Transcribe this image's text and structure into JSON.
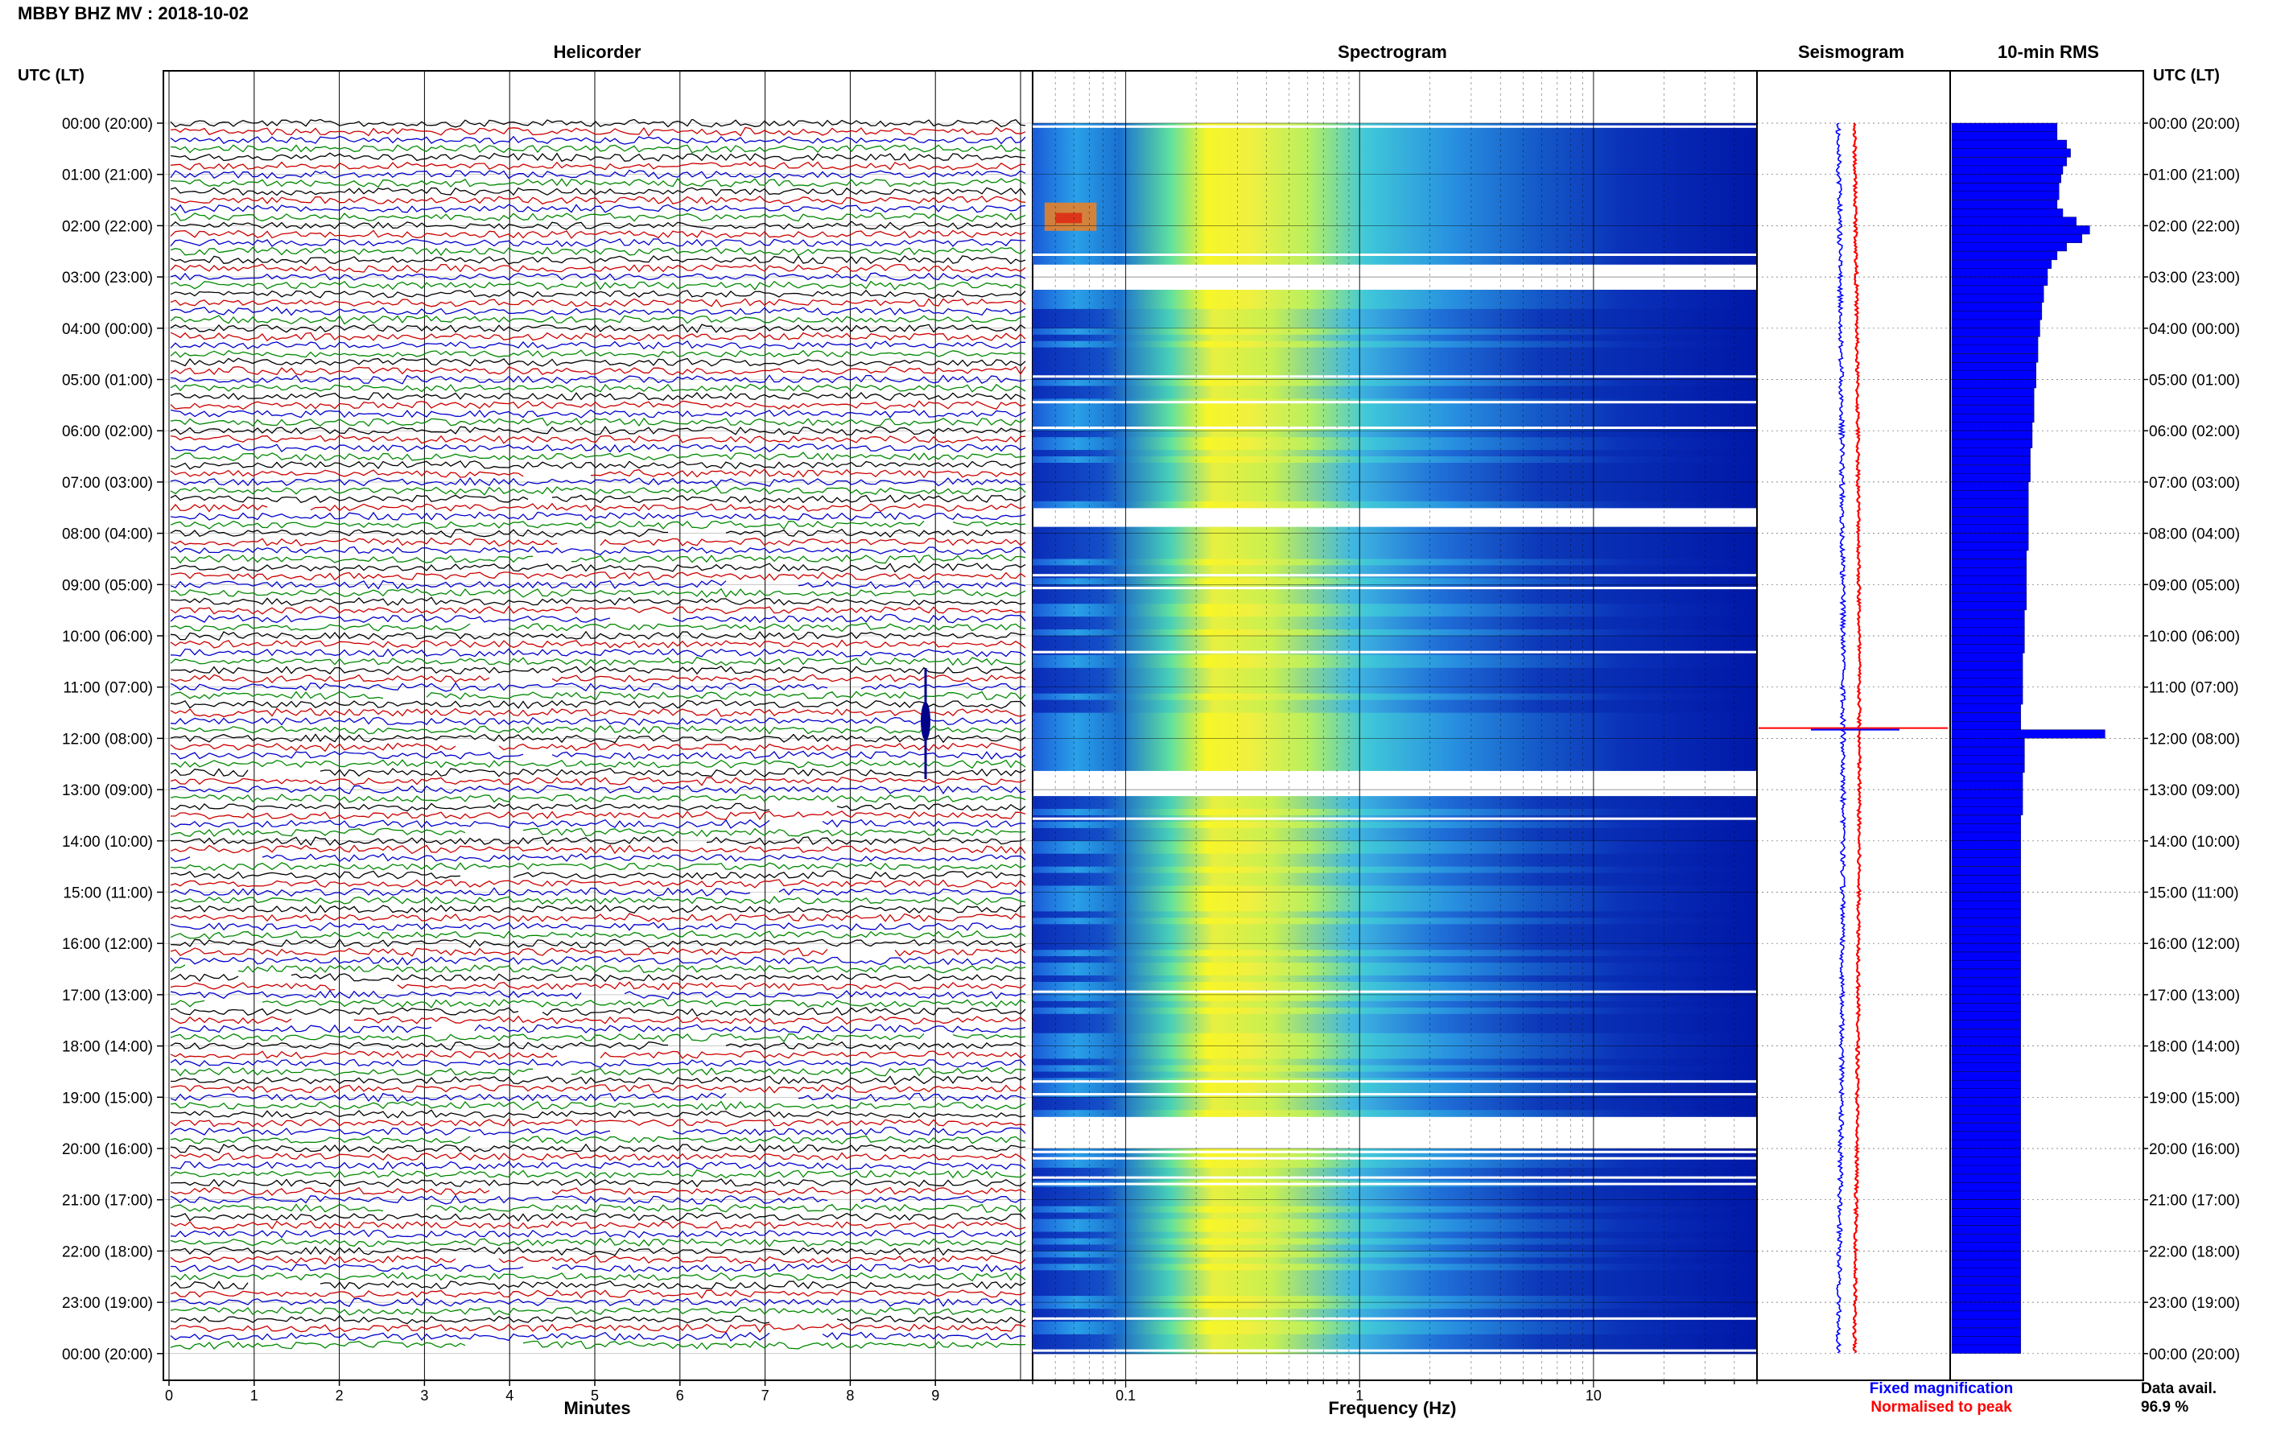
{
  "header": {
    "station_title": "MBBY BHZ MV : 2018-10-02",
    "utc_lt_left": "UTC (LT)",
    "utc_lt_right": "UTC (LT)"
  },
  "panels": {
    "helicorder": "Helicorder",
    "spectrogram": "Spectrogram",
    "seismogram": "Seismogram",
    "rms": "10-min RMS"
  },
  "footer": {
    "fixed_magnification": "Fixed magnification",
    "normalised_to_peak": "Normalised to peak",
    "data_avail_label": "Data avail.",
    "data_avail_value": "96.9 %"
  },
  "colors": {
    "helicorder_traces": [
      "#000000",
      "#cc0000",
      "#0000cc",
      "#008800"
    ],
    "fixed_magnification": "#0000ff",
    "normalised_to_peak": "#ff0000",
    "spectrogram_low": "#0018b0",
    "spectrogram_high": "#ffff20",
    "rms_bar": "#0000ff"
  },
  "chart_data": [
    {
      "type": "line",
      "title": "Helicorder",
      "xlabel": "Minutes",
      "ylabel": "UTC (LT)",
      "xlim": [
        0,
        10
      ],
      "x_ticks": [
        "0",
        "1",
        "2",
        "3",
        "4",
        "5",
        "6",
        "7",
        "8",
        "9"
      ],
      "y_ticks_left": [
        "00:00 (20:00)",
        "01:00 (21:00)",
        "02:00 (22:00)",
        "03:00 (23:00)",
        "04:00 (00:00)",
        "05:00 (01:00)",
        "06:00 (02:00)",
        "07:00 (03:00)",
        "08:00 (04:00)",
        "09:00 (05:00)",
        "10:00 (06:00)",
        "11:00 (07:00)",
        "12:00 (08:00)",
        "13:00 (09:00)",
        "14:00 (10:00)",
        "15:00 (11:00)",
        "16:00 (12:00)",
        "17:00 (13:00)",
        "18:00 (14:00)",
        "19:00 (15:00)",
        "20:00 (16:00)",
        "21:00 (17:00)",
        "22:00 (18:00)",
        "23:00 (19:00)",
        "00:00 (20:00)"
      ],
      "traces_per_hour": 6,
      "notable_events": [
        {
          "hour": 11.8,
          "minute": 8.9,
          "note": "large spike"
        }
      ]
    },
    {
      "type": "heatmap",
      "title": "Spectrogram",
      "xlabel": "Frequency (Hz)",
      "x_scale": "log",
      "x_ticks": [
        "0.1",
        "1",
        "10"
      ],
      "xlim": [
        0.04,
        50
      ],
      "y_span_hours": [
        0,
        24
      ],
      "data_gaps_hours": [
        [
          2.65,
          3.25
        ],
        [
          7.45,
          7.8
        ],
        [
          12.55,
          13.1
        ],
        [
          19.3,
          20.0
        ]
      ]
    },
    {
      "type": "line",
      "title": "Seismogram",
      "series": [
        {
          "name": "Fixed magnification",
          "color": "#0000ff"
        },
        {
          "name": "Normalised to peak",
          "color": "#ff0000"
        }
      ],
      "spike_hour": 11.8
    },
    {
      "type": "bar",
      "title": "10-min RMS",
      "orientation": "horizontal",
      "hours": [
        0,
        0.17,
        0.33,
        0.5,
        0.67,
        0.83,
        1,
        1.17,
        1.33,
        1.5,
        1.67,
        1.83,
        2,
        2.17,
        2.33,
        2.5,
        2.67,
        2.83,
        3,
        3.17,
        3.33,
        3.5,
        3.67,
        3.83,
        4,
        4.17,
        4.33,
        4.5,
        4.67,
        4.83,
        5,
        5.17,
        5.33,
        5.5,
        5.67,
        5.83,
        6,
        6.17,
        6.33,
        6.5,
        6.67,
        6.83,
        7,
        7.17,
        7.33,
        7.5,
        7.67,
        7.83,
        8,
        8.17,
        8.33,
        8.5,
        8.67,
        8.83,
        9,
        9.17,
        9.33,
        9.5,
        9.67,
        9.83,
        10,
        10.17,
        10.33,
        10.5,
        10.67,
        10.83,
        11,
        11.17,
        11.33,
        11.5,
        11.67,
        11.83,
        12,
        12.17,
        12.33,
        12.5,
        12.67,
        12.83,
        13,
        13.17,
        13.33,
        13.5,
        13.67,
        13.83,
        14,
        14.17,
        14.33,
        14.5,
        14.67,
        14.83,
        15,
        15.17,
        15.33,
        15.5,
        15.67,
        15.83,
        16,
        16.17,
        16.33,
        16.5,
        16.67,
        16.83,
        17,
        17.17,
        17.33,
        17.5,
        17.67,
        17.83,
        18,
        18.17,
        18.33,
        18.5,
        18.67,
        18.83,
        19,
        19.17,
        19.33,
        19.5,
        19.67,
        19.83,
        20,
        20.17,
        20.33,
        20.5,
        20.67,
        20.83,
        21,
        21.17,
        21.33,
        21.5,
        21.67,
        21.83,
        22,
        22.17,
        22.33,
        22.5,
        22.67,
        22.83,
        23,
        23.17,
        23.33,
        23.5,
        23.67,
        23.83
      ],
      "values": [
        0.55,
        0.55,
        0.6,
        0.62,
        0.6,
        0.58,
        0.57,
        0.56,
        0.56,
        0.55,
        0.58,
        0.65,
        0.72,
        0.68,
        0.6,
        0.55,
        0.52,
        0.5,
        0.5,
        0.48,
        0.48,
        0.47,
        0.47,
        0.46,
        0.46,
        0.45,
        0.45,
        0.45,
        0.44,
        0.44,
        0.44,
        0.43,
        0.43,
        0.43,
        0.43,
        0.42,
        0.42,
        0.42,
        0.41,
        0.41,
        0.41,
        0.41,
        0.4,
        0.4,
        0.4,
        0.4,
        0.4,
        0.4,
        0.4,
        0.4,
        0.39,
        0.39,
        0.39,
        0.39,
        0.39,
        0.39,
        0.39,
        0.38,
        0.38,
        0.38,
        0.38,
        0.38,
        0.37,
        0.37,
        0.37,
        0.37,
        0.37,
        0.37,
        0.36,
        0.36,
        0.36,
        0.8,
        0.38,
        0.38,
        0.38,
        0.38,
        0.37,
        0.37,
        0.37,
        0.37,
        0.37,
        0.36,
        0.36,
        0.36,
        0.36,
        0.36,
        0.36,
        0.36,
        0.36,
        0.36,
        0.36,
        0.36,
        0.36,
        0.36,
        0.36,
        0.36,
        0.36,
        0.36,
        0.36,
        0.36,
        0.36,
        0.36,
        0.36,
        0.36,
        0.36,
        0.36,
        0.36,
        0.36,
        0.36,
        0.36,
        0.36,
        0.36,
        0.36,
        0.36,
        0.36,
        0.36,
        0.36,
        0.36,
        0.36,
        0.36,
        0.36,
        0.36,
        0.36,
        0.36,
        0.36,
        0.36,
        0.36,
        0.36,
        0.36,
        0.36,
        0.36,
        0.36,
        0.36,
        0.36,
        0.36,
        0.36,
        0.36,
        0.36,
        0.36,
        0.36,
        0.36,
        0.36,
        0.36,
        0.36
      ],
      "xlim": [
        0,
        1
      ]
    }
  ]
}
